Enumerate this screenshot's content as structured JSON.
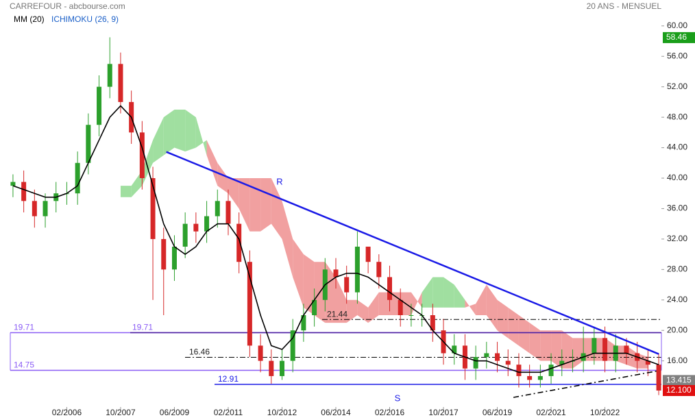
{
  "chart_data": {
    "type": "candlestick",
    "title": "CARREFOUR - abcbourse.com",
    "subtitle": "20 ANS - MENSUEL",
    "indicators": [
      {
        "name": "MM (20)",
        "color": "#000000"
      },
      {
        "name": "ICHIMOKU (26, 9)",
        "color": "#1a5fc8"
      }
    ],
    "x": [
      "06/2004",
      "10/2004",
      "02/2005",
      "06/2005",
      "10/2005",
      "02/2006",
      "06/2006",
      "10/2006",
      "02/2007",
      "06/2007",
      "10/2007",
      "02/2008",
      "06/2008",
      "10/2008",
      "02/2009",
      "06/2009",
      "10/2009",
      "02/2010",
      "06/2010",
      "10/2010",
      "02/2011",
      "06/2011",
      "10/2011",
      "02/2012",
      "06/2012",
      "10/2012",
      "02/2013",
      "06/2013",
      "10/2013",
      "02/2014",
      "06/2014",
      "10/2014",
      "02/2015",
      "06/2015",
      "10/2015",
      "02/2016",
      "06/2016",
      "10/2016",
      "02/2017",
      "06/2017",
      "10/2017",
      "02/2018",
      "06/2018",
      "10/2018",
      "02/2019",
      "06/2019",
      "10/2019",
      "02/2020",
      "06/2020",
      "10/2020",
      "02/2021",
      "06/2021",
      "10/2021",
      "02/2022",
      "06/2022",
      "10/2022",
      "02/2023",
      "06/2023",
      "10/2023",
      "02/2024",
      "06/2024"
    ],
    "open": [
      39,
      39.5,
      37,
      35,
      37,
      38,
      38,
      42,
      47,
      52,
      55,
      50,
      46,
      40,
      32,
      28,
      31,
      34,
      33,
      35,
      37,
      34,
      29,
      18,
      16,
      14,
      16,
      20,
      22,
      24,
      28,
      27,
      25,
      31,
      29,
      27,
      24,
      22,
      22,
      22,
      20,
      17,
      18,
      15,
      16.5,
      17,
      16,
      15.5,
      14,
      13.5,
      14,
      15.5,
      16,
      16,
      17,
      19,
      16,
      18,
      17,
      16,
      15.5
    ],
    "high": [
      40.5,
      41,
      38.5,
      38,
      39.5,
      39.5,
      43.5,
      48.5,
      53.5,
      58.5,
      56.5,
      51.5,
      47.5,
      41.5,
      33.5,
      32.5,
      35.5,
      35.5,
      37,
      38.5,
      38.5,
      35.5,
      30.5,
      19.5,
      17.5,
      17.5,
      21.5,
      23.5,
      25.5,
      29.5,
      29.5,
      28.5,
      33,
      31,
      30,
      28.5,
      25.5,
      23.5,
      23.5,
      23.5,
      21.5,
      19.5,
      19.5,
      18,
      18.5,
      18.5,
      17.5,
      17,
      15.5,
      15.5,
      17,
      17.5,
      17.5,
      20.5,
      20.5,
      20.5,
      19.5,
      19,
      18.5,
      17.5,
      17
    ],
    "low": [
      37.5,
      35.5,
      33.5,
      33.5,
      35.5,
      36.5,
      36.5,
      40.5,
      45.5,
      50.5,
      48.5,
      44.5,
      38.5,
      24,
      22,
      26.5,
      29.5,
      31.5,
      31.5,
      33.5,
      32.5,
      27.5,
      16.5,
      14.5,
      13,
      13.5,
      14.5,
      18.5,
      20.5,
      22.5,
      25.5,
      23.5,
      23.5,
      27.5,
      25.5,
      22.5,
      20.5,
      20.5,
      20.5,
      18.5,
      15.5,
      15.5,
      13.5,
      13.5,
      15,
      14.5,
      14,
      12.5,
      12.5,
      12.5,
      13,
      14,
      14.5,
      14.5,
      15.5,
      14.5,
      14.5,
      15.5,
      14.5,
      14,
      11.5
    ],
    "close": [
      39.5,
      37,
      35,
      37,
      38,
      38,
      42,
      47,
      52,
      55,
      50,
      46,
      40,
      32,
      28,
      31,
      34,
      33,
      35,
      37,
      34,
      29,
      18,
      16,
      14,
      16,
      20,
      22,
      24,
      28,
      27,
      25,
      31,
      29,
      27,
      24,
      22,
      22,
      22,
      20,
      17,
      18,
      15,
      16.5,
      17,
      16,
      15.5,
      14,
      13.5,
      14,
      15.5,
      16,
      16,
      17,
      19,
      16,
      18,
      17,
      16,
      15.5,
      12.1
    ],
    "up_color": "#2ca02c",
    "down_color": "#d62728",
    "ma": [
      39,
      38.5,
      38,
      37.5,
      37.5,
      38,
      39,
      42,
      45,
      48,
      49.5,
      48,
      44,
      39,
      34,
      31,
      30,
      31,
      33,
      34,
      34,
      32,
      27,
      22,
      18,
      17.5,
      19,
      22,
      24,
      26,
      27,
      27.5,
      27.5,
      27,
      26,
      25,
      24,
      23,
      22,
      20,
      18.5,
      17,
      16.5,
      16,
      16,
      15.5,
      15,
      14.5,
      14.5,
      14.5,
      15,
      15.5,
      16,
      16.5,
      17,
      17,
      17,
      17,
      16.5,
      16,
      15.5
    ],
    "ma_color": "#000000",
    "cloud": {
      "span_a": [
        null,
        null,
        null,
        null,
        null,
        null,
        null,
        null,
        null,
        null,
        39,
        39,
        41,
        45,
        48,
        49,
        49,
        48,
        43,
        39,
        38,
        36,
        33,
        33,
        34,
        32,
        27,
        23,
        22,
        21,
        21,
        21,
        22,
        21,
        22,
        22,
        22,
        22,
        25,
        27,
        27,
        26,
        24,
        22,
        22,
        20,
        19,
        18,
        17,
        16,
        16,
        15,
        15,
        16,
        16,
        16,
        16,
        15.5,
        15,
        15,
        null
      ],
      "span_b": [
        null,
        null,
        null,
        null,
        null,
        null,
        null,
        null,
        null,
        null,
        37.5,
        37.5,
        39,
        42,
        43,
        44,
        43.5,
        44,
        45,
        42,
        40,
        40,
        40,
        40,
        40,
        37,
        32,
        30,
        29,
        29,
        27,
        24,
        24,
        23,
        25,
        25,
        25,
        25,
        23,
        23,
        23,
        23,
        23,
        23.5,
        26,
        24,
        23,
        22,
        21,
        20,
        20,
        20,
        19,
        19,
        19,
        19,
        18,
        18,
        17,
        16.5,
        null
      ],
      "up_color": "#8fd98f",
      "down_color": "#ef8f8f"
    },
    "trendlines": [
      {
        "name": "R",
        "x": [
          "03/2009",
          "06/2024"
        ],
        "y": [
          43.45,
          16.9
        ],
        "color": "#1a1ae6"
      },
      {
        "x": [
          "12/2019",
          "06/2024"
        ],
        "y": [
          11.2,
          14.7
        ],
        "color": "#000000",
        "style": "dashed"
      }
    ],
    "levels": [
      {
        "value": 19.71,
        "color": "#8a5cf5"
      },
      {
        "value": 14.75,
        "color": "#8a5cf5"
      },
      {
        "value": 12.91,
        "name": "S",
        "color": "#1a1ae6"
      },
      {
        "value": 21.44,
        "color": "#000000",
        "style": "dashdot"
      },
      {
        "value": 16.46,
        "color": "#000000",
        "style": "dashdot"
      }
    ],
    "price_tags": [
      {
        "value": 58.46,
        "color": "#1a9e1a"
      },
      {
        "value": 13.415,
        "color": "#808080"
      },
      {
        "value": {
          "value": 12.1,
          "label": "12.100"
        },
        "color": "#e01010"
      }
    ],
    "xlim": [
      "05/2004",
      "07/2024"
    ],
    "xticks": [
      "02/2006",
      "10/2007",
      "06/2009",
      "02/2011",
      "10/2012",
      "06/2014",
      "02/2016",
      "10/2017",
      "06/2019",
      "02/2021",
      "10/2022"
    ],
    "ylim": [
      10.3,
      63.4
    ],
    "yticks": [
      {
        "value": 16,
        "label": "16.00"
      },
      {
        "value": 20,
        "label": "20.00"
      },
      {
        "value": 24,
        "label": "24.00"
      },
      {
        "value": 28,
        "label": "28.00"
      },
      {
        "value": 32,
        "label": "32.00"
      },
      {
        "value": 36,
        "label": "36.00"
      },
      {
        "value": 40,
        "label": "40.00"
      },
      {
        "value": 44,
        "label": "44.00"
      },
      {
        "value": 48,
        "label": "48.00"
      },
      {
        "value": 52,
        "label": "52.00"
      },
      {
        "value": 56,
        "label": "56.00"
      },
      {
        "value": 60,
        "label": "60.00"
      }
    ]
  }
}
